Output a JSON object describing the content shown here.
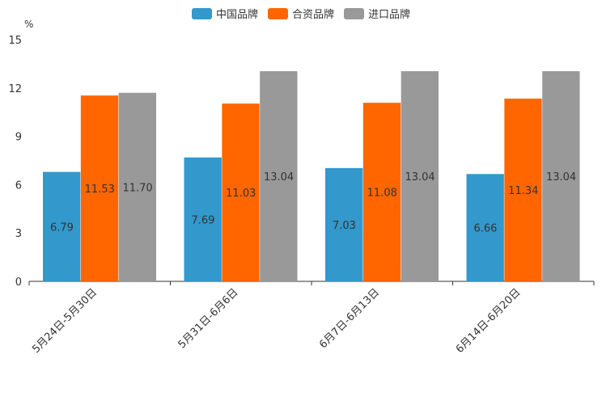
{
  "chart_data": {
    "type": "bar",
    "title": "",
    "unit_label": "%",
    "xlabel": "",
    "ylabel": "%",
    "ylim": [
      0,
      15
    ],
    "yticks": [
      0,
      3,
      6,
      9,
      12,
      15
    ],
    "categories": [
      "5月24日-5月30日",
      "5月31日-6月6日",
      "6月7日-6月13日",
      "6月14日-6月20日"
    ],
    "series": [
      {
        "name": "中国品牌",
        "color": "#3398cc",
        "values": [
          6.79,
          7.69,
          7.03,
          6.66
        ],
        "labels": [
          "6.79",
          "7.69",
          "7.03",
          "6.66"
        ]
      },
      {
        "name": "合资品牌",
        "color": "#ff6600",
        "values": [
          11.53,
          11.03,
          11.08,
          11.34
        ],
        "labels": [
          "11.53",
          "11.03",
          "11.08",
          "11.34"
        ]
      },
      {
        "name": "进口品牌",
        "color": "#999999",
        "values": [
          11.7,
          13.04,
          13.04,
          13.04
        ],
        "labels": [
          "11.70",
          "13.04",
          "13.04",
          "13.04"
        ]
      }
    ],
    "legend_position": "top-center",
    "grid": false
  }
}
